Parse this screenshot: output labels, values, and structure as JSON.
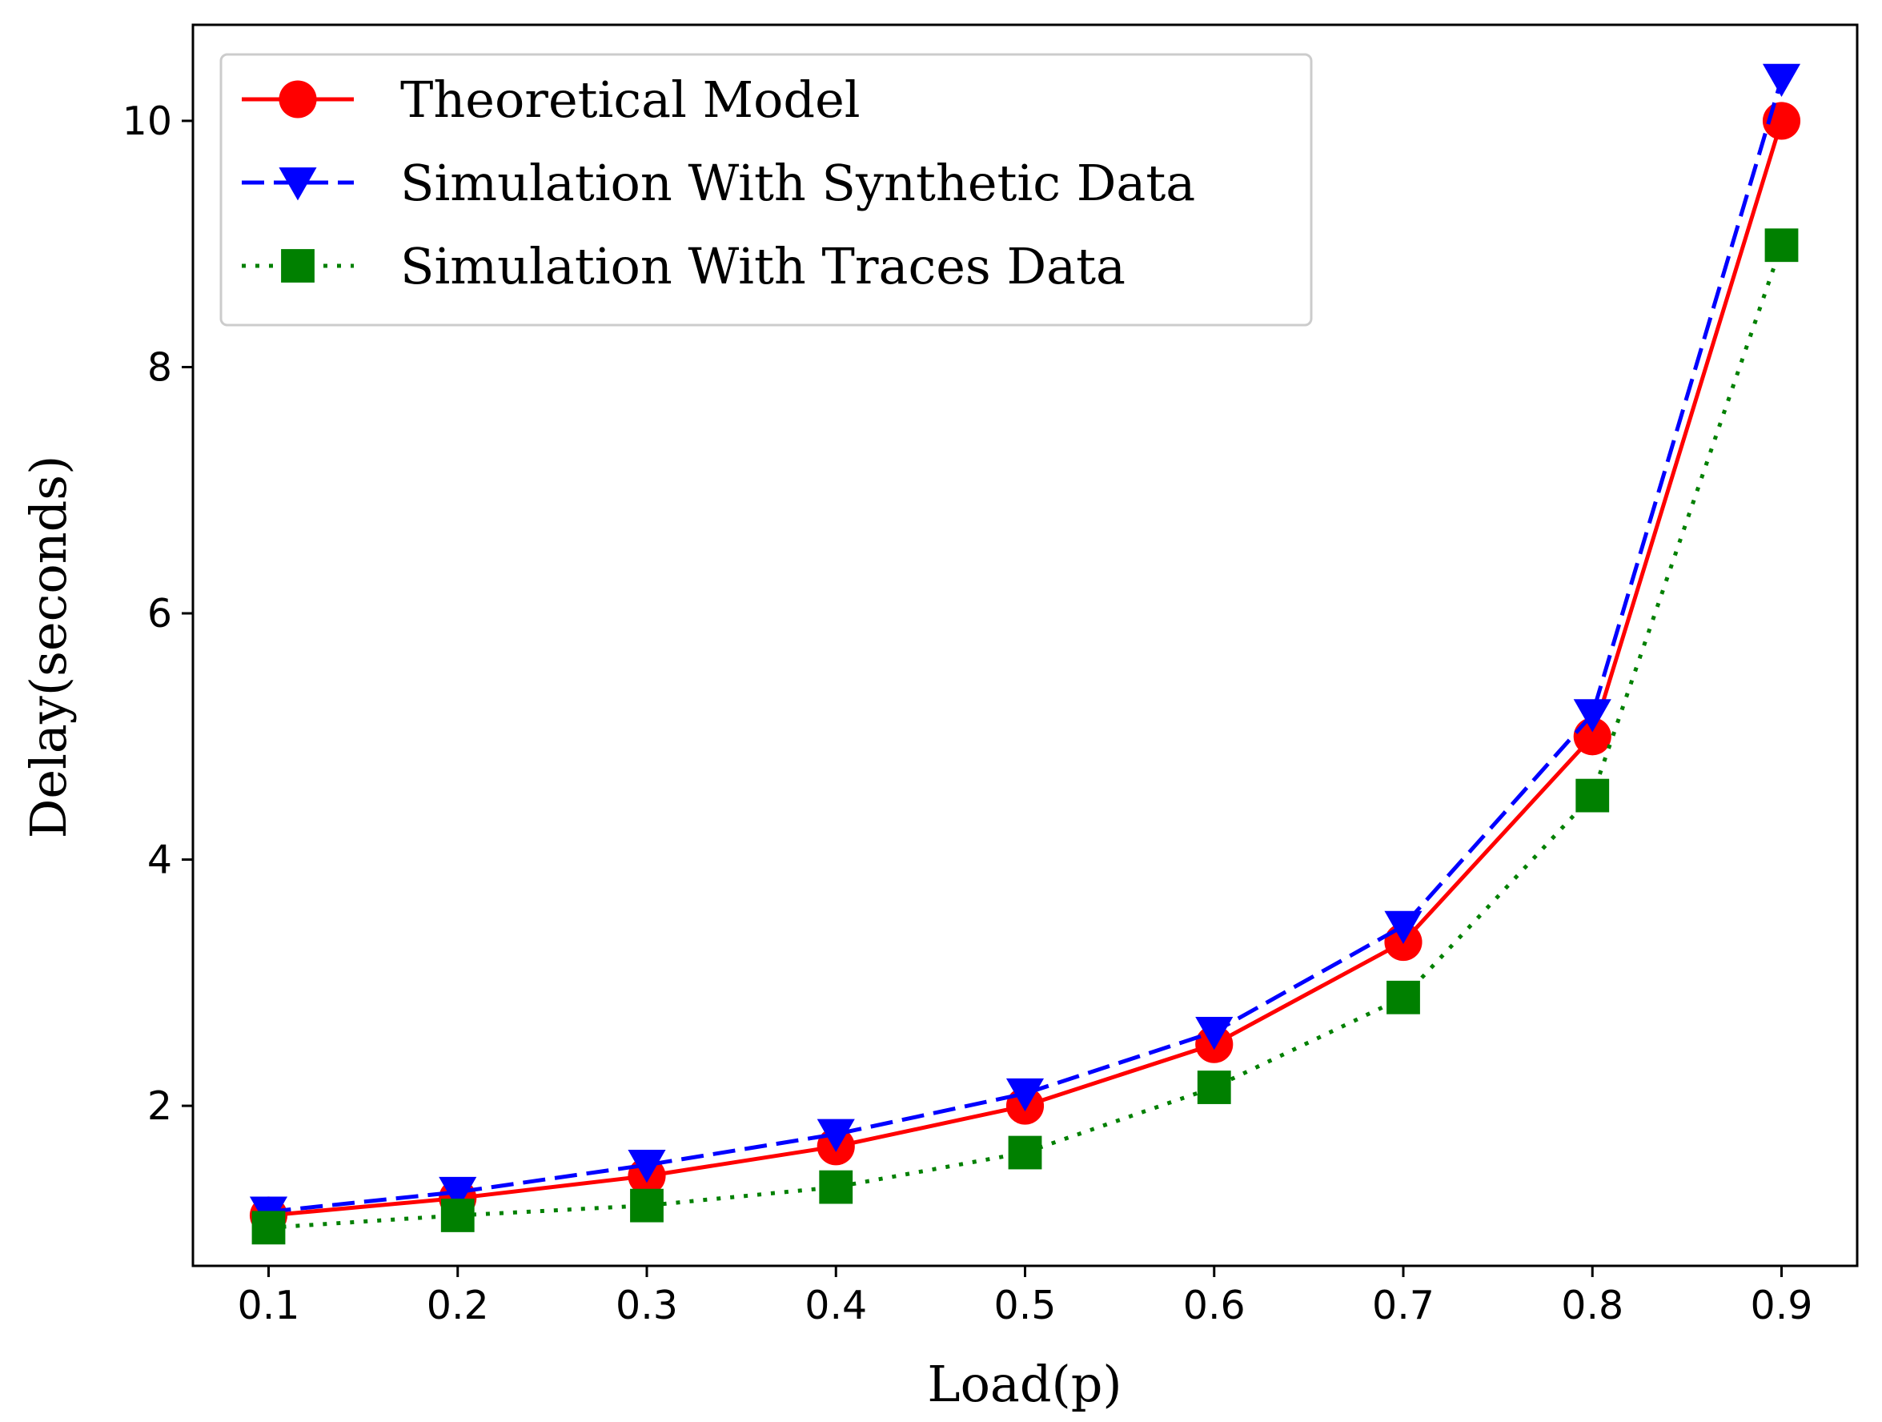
{
  "chart_data": {
    "type": "line",
    "title": "",
    "xlabel": "Load(p)",
    "ylabel": "Delay(seconds)",
    "x": [
      0.1,
      0.2,
      0.3,
      0.4,
      0.5,
      0.6,
      0.7,
      0.8,
      0.9
    ],
    "xlim": [
      0.06,
      0.94
    ],
    "ylim": [
      0.7,
      10.78
    ],
    "xticks": [
      0.1,
      0.2,
      0.3,
      0.4,
      0.5,
      0.6,
      0.7,
      0.8,
      0.9
    ],
    "xtick_labels": [
      "0.1",
      "0.2",
      "0.3",
      "0.4",
      "0.5",
      "0.6",
      "0.7",
      "0.8",
      "0.9"
    ],
    "yticks": [
      2,
      4,
      6,
      8,
      10
    ],
    "ytick_labels": [
      "2",
      "4",
      "6",
      "8",
      "10"
    ],
    "grid": false,
    "legend_position": "top-left",
    "series": [
      {
        "name": "Theoretical Model",
        "values": [
          1.11,
          1.25,
          1.43,
          1.67,
          2.0,
          2.5,
          3.33,
          5.0,
          10.0
        ],
        "color": "#ff0000",
        "line_style": "solid",
        "marker": "circle"
      },
      {
        "name": "Simulation With Synthetic Data",
        "values": [
          1.14,
          1.3,
          1.52,
          1.77,
          2.1,
          2.6,
          3.46,
          5.18,
          10.34
        ],
        "color": "#0000ff",
        "line_style": "dashed",
        "marker": "triangle-down"
      },
      {
        "name": "Simulation With Traces Data",
        "values": [
          1.01,
          1.11,
          1.19,
          1.34,
          1.62,
          2.15,
          2.88,
          4.52,
          8.99
        ],
        "color": "#008000",
        "line_style": "dotted",
        "marker": "square"
      }
    ]
  }
}
